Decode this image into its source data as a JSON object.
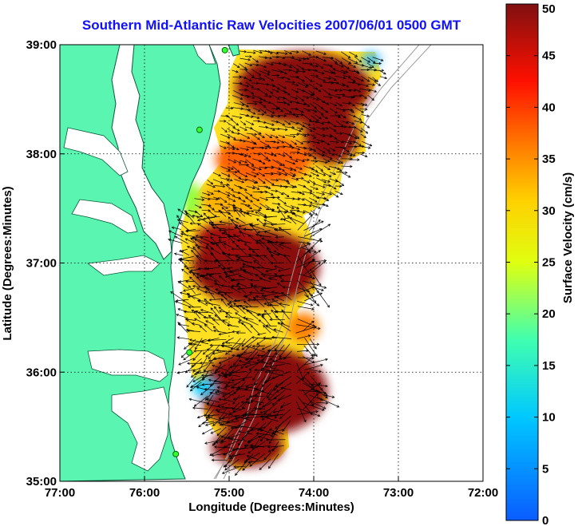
{
  "title": "Southern Mid-Atlantic Raw Velocities 2007/06/01 0500 GMT",
  "x_axis": {
    "label": "Longitude (Degrees:Minutes)",
    "ticks": [
      {
        "value": -77,
        "label": "77:00"
      },
      {
        "value": -76,
        "label": "76:00"
      },
      {
        "value": -75,
        "label": "75:00"
      },
      {
        "value": -74,
        "label": "74:00"
      },
      {
        "value": -73,
        "label": "73:00"
      },
      {
        "value": -72,
        "label": "72:00"
      }
    ]
  },
  "y_axis": {
    "label": "Latitude (Degrees:Minutes)",
    "ticks": [
      {
        "value": 39,
        "label": "39:00"
      },
      {
        "value": 38,
        "label": "38:00"
      },
      {
        "value": 37,
        "label": "37:00"
      },
      {
        "value": 36,
        "label": "36:00"
      },
      {
        "value": 35,
        "label": "35:00"
      }
    ]
  },
  "colorbar": {
    "label": "Surface Velocity (cm/s)",
    "range": [
      0,
      50
    ],
    "ticks": [
      "0",
      "5",
      "10",
      "15",
      "20",
      "25",
      "30",
      "35",
      "40",
      "45",
      "50"
    ],
    "colormap": "jet"
  },
  "colors": {
    "land": "#5af5b0",
    "water": "#ffffff",
    "title": "#1010ff",
    "grid": "#000000"
  },
  "stations": [
    {
      "lon": -75.05,
      "lat": 38.95
    },
    {
      "lon": -75.35,
      "lat": 38.22
    },
    {
      "lon": -75.47,
      "lat": 36.18
    },
    {
      "lon": -75.63,
      "lat": 35.25
    }
  ]
}
